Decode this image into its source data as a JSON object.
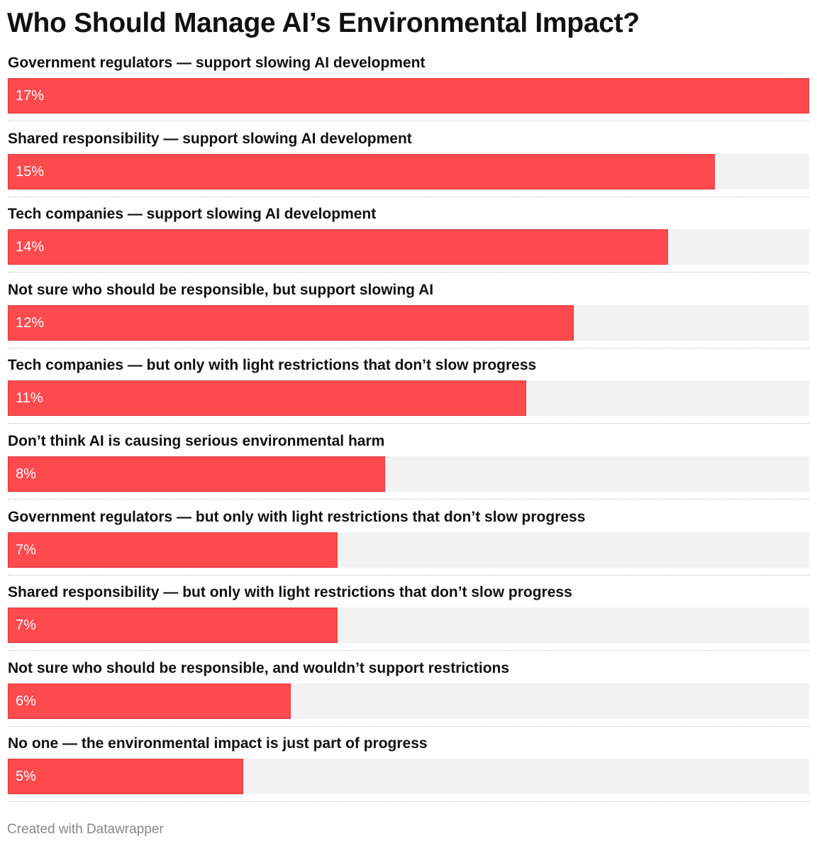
{
  "chart_data": {
    "type": "bar",
    "orientation": "horizontal",
    "title": "Who Should Manage AI’s Environmental Impact?",
    "categories": [
      "Government regulators — support slowing AI development",
      "Shared responsibility — support slowing AI development",
      "Tech companies — support slowing AI development",
      "Not sure who should be responsible, but support slowing AI",
      "Tech companies — but only with light restrictions that don’t slow progress",
      "Don’t think AI is causing serious environmental harm",
      "Government regulators — but only with light restrictions that don’t slow progress",
      "Shared responsibility — but only with light restrictions that don’t slow progress",
      "Not sure who should be responsible, and wouldn’t support restrictions",
      "No one — the environmental impact is just part of progress"
    ],
    "values": [
      17,
      15,
      14,
      12,
      11,
      8,
      7,
      7,
      6,
      5
    ],
    "value_labels": [
      "17%",
      "15%",
      "14%",
      "12%",
      "11%",
      "8%",
      "7%",
      "7%",
      "6%",
      "5%"
    ],
    "xlim": [
      0,
      17
    ],
    "unit": "%",
    "xlabel": "",
    "ylabel": "",
    "grid": false,
    "legend": "none"
  },
  "colors": {
    "bar": "#ff4a4e",
    "track": "#f2f2f2"
  },
  "footer": "Created with Datawrapper"
}
